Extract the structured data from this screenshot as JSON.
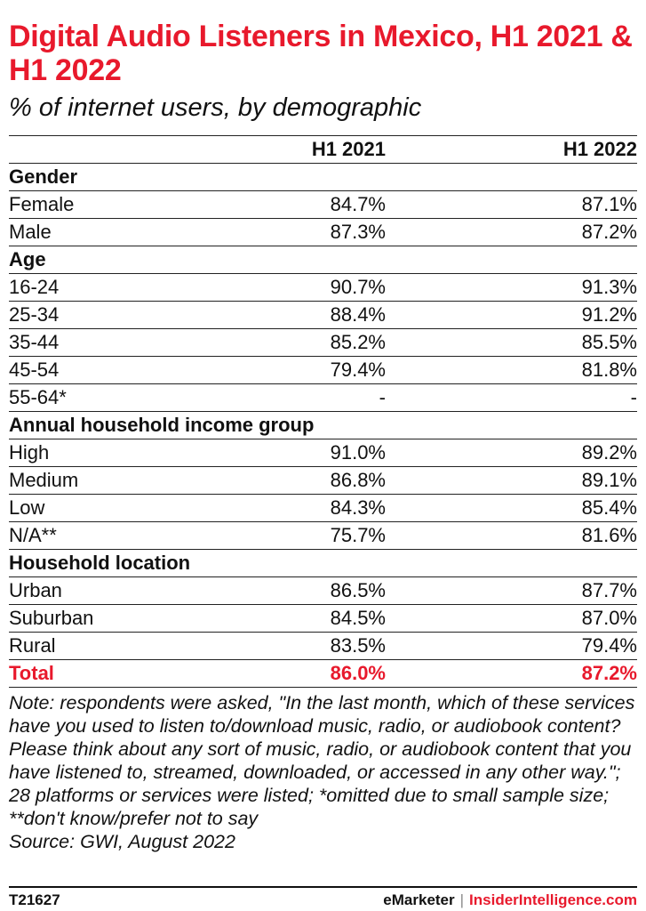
{
  "chart_data": {
    "type": "table",
    "title": "Digital Audio Listeners in Mexico, H1 2021 & H1 2022",
    "subtitle": "% of internet users, by demographic",
    "columns": [
      "H1 2021",
      "H1 2022"
    ],
    "groups": [
      {
        "name": "Gender",
        "rows": [
          {
            "label": "Female",
            "values": [
              "84.7%",
              "87.1%"
            ]
          },
          {
            "label": "Male",
            "values": [
              "87.3%",
              "87.2%"
            ]
          }
        ]
      },
      {
        "name": "Age",
        "rows": [
          {
            "label": "16-24",
            "values": [
              "90.7%",
              "91.3%"
            ]
          },
          {
            "label": "25-34",
            "values": [
              "88.4%",
              "91.2%"
            ]
          },
          {
            "label": "35-44",
            "values": [
              "85.2%",
              "85.5%"
            ]
          },
          {
            "label": "45-54",
            "values": [
              "79.4%",
              "81.8%"
            ]
          },
          {
            "label": "55-64*",
            "values": [
              "-",
              "-"
            ]
          }
        ]
      },
      {
        "name": "Annual household income group",
        "rows": [
          {
            "label": "High",
            "values": [
              "91.0%",
              "89.2%"
            ]
          },
          {
            "label": "Medium",
            "values": [
              "86.8%",
              "89.1%"
            ]
          },
          {
            "label": "Low",
            "values": [
              "84.3%",
              "85.4%"
            ]
          },
          {
            "label": "N/A**",
            "values": [
              "75.7%",
              "81.6%"
            ]
          }
        ]
      },
      {
        "name": "Household location",
        "rows": [
          {
            "label": "Urban",
            "values": [
              "86.5%",
              "87.7%"
            ]
          },
          {
            "label": "Suburban",
            "values": [
              "84.5%",
              "87.0%"
            ]
          },
          {
            "label": "Rural",
            "values": [
              "83.5%",
              "79.4%"
            ]
          }
        ]
      }
    ],
    "total": {
      "label": "Total",
      "values": [
        "86.0%",
        "87.2%"
      ]
    },
    "note": "Note: respondents were asked, \"In the last month, which of these services have you used to listen to/download music, radio, or audiobook content? Please think about any sort of music, radio, or audiobook content that you have listened to, streamed, downloaded, or accessed in any other way.\"; 28 platforms or services were listed; *omitted due to small sample size; **don't know/prefer not to say",
    "source": "Source: GWI, August 2022"
  },
  "footer": {
    "chart_id": "T21627",
    "brand_primary": "eMarketer",
    "brand_separator": "|",
    "brand_secondary": "InsiderIntelligence.com"
  },
  "colors": {
    "accent": "#e8192c",
    "text": "#111111"
  }
}
